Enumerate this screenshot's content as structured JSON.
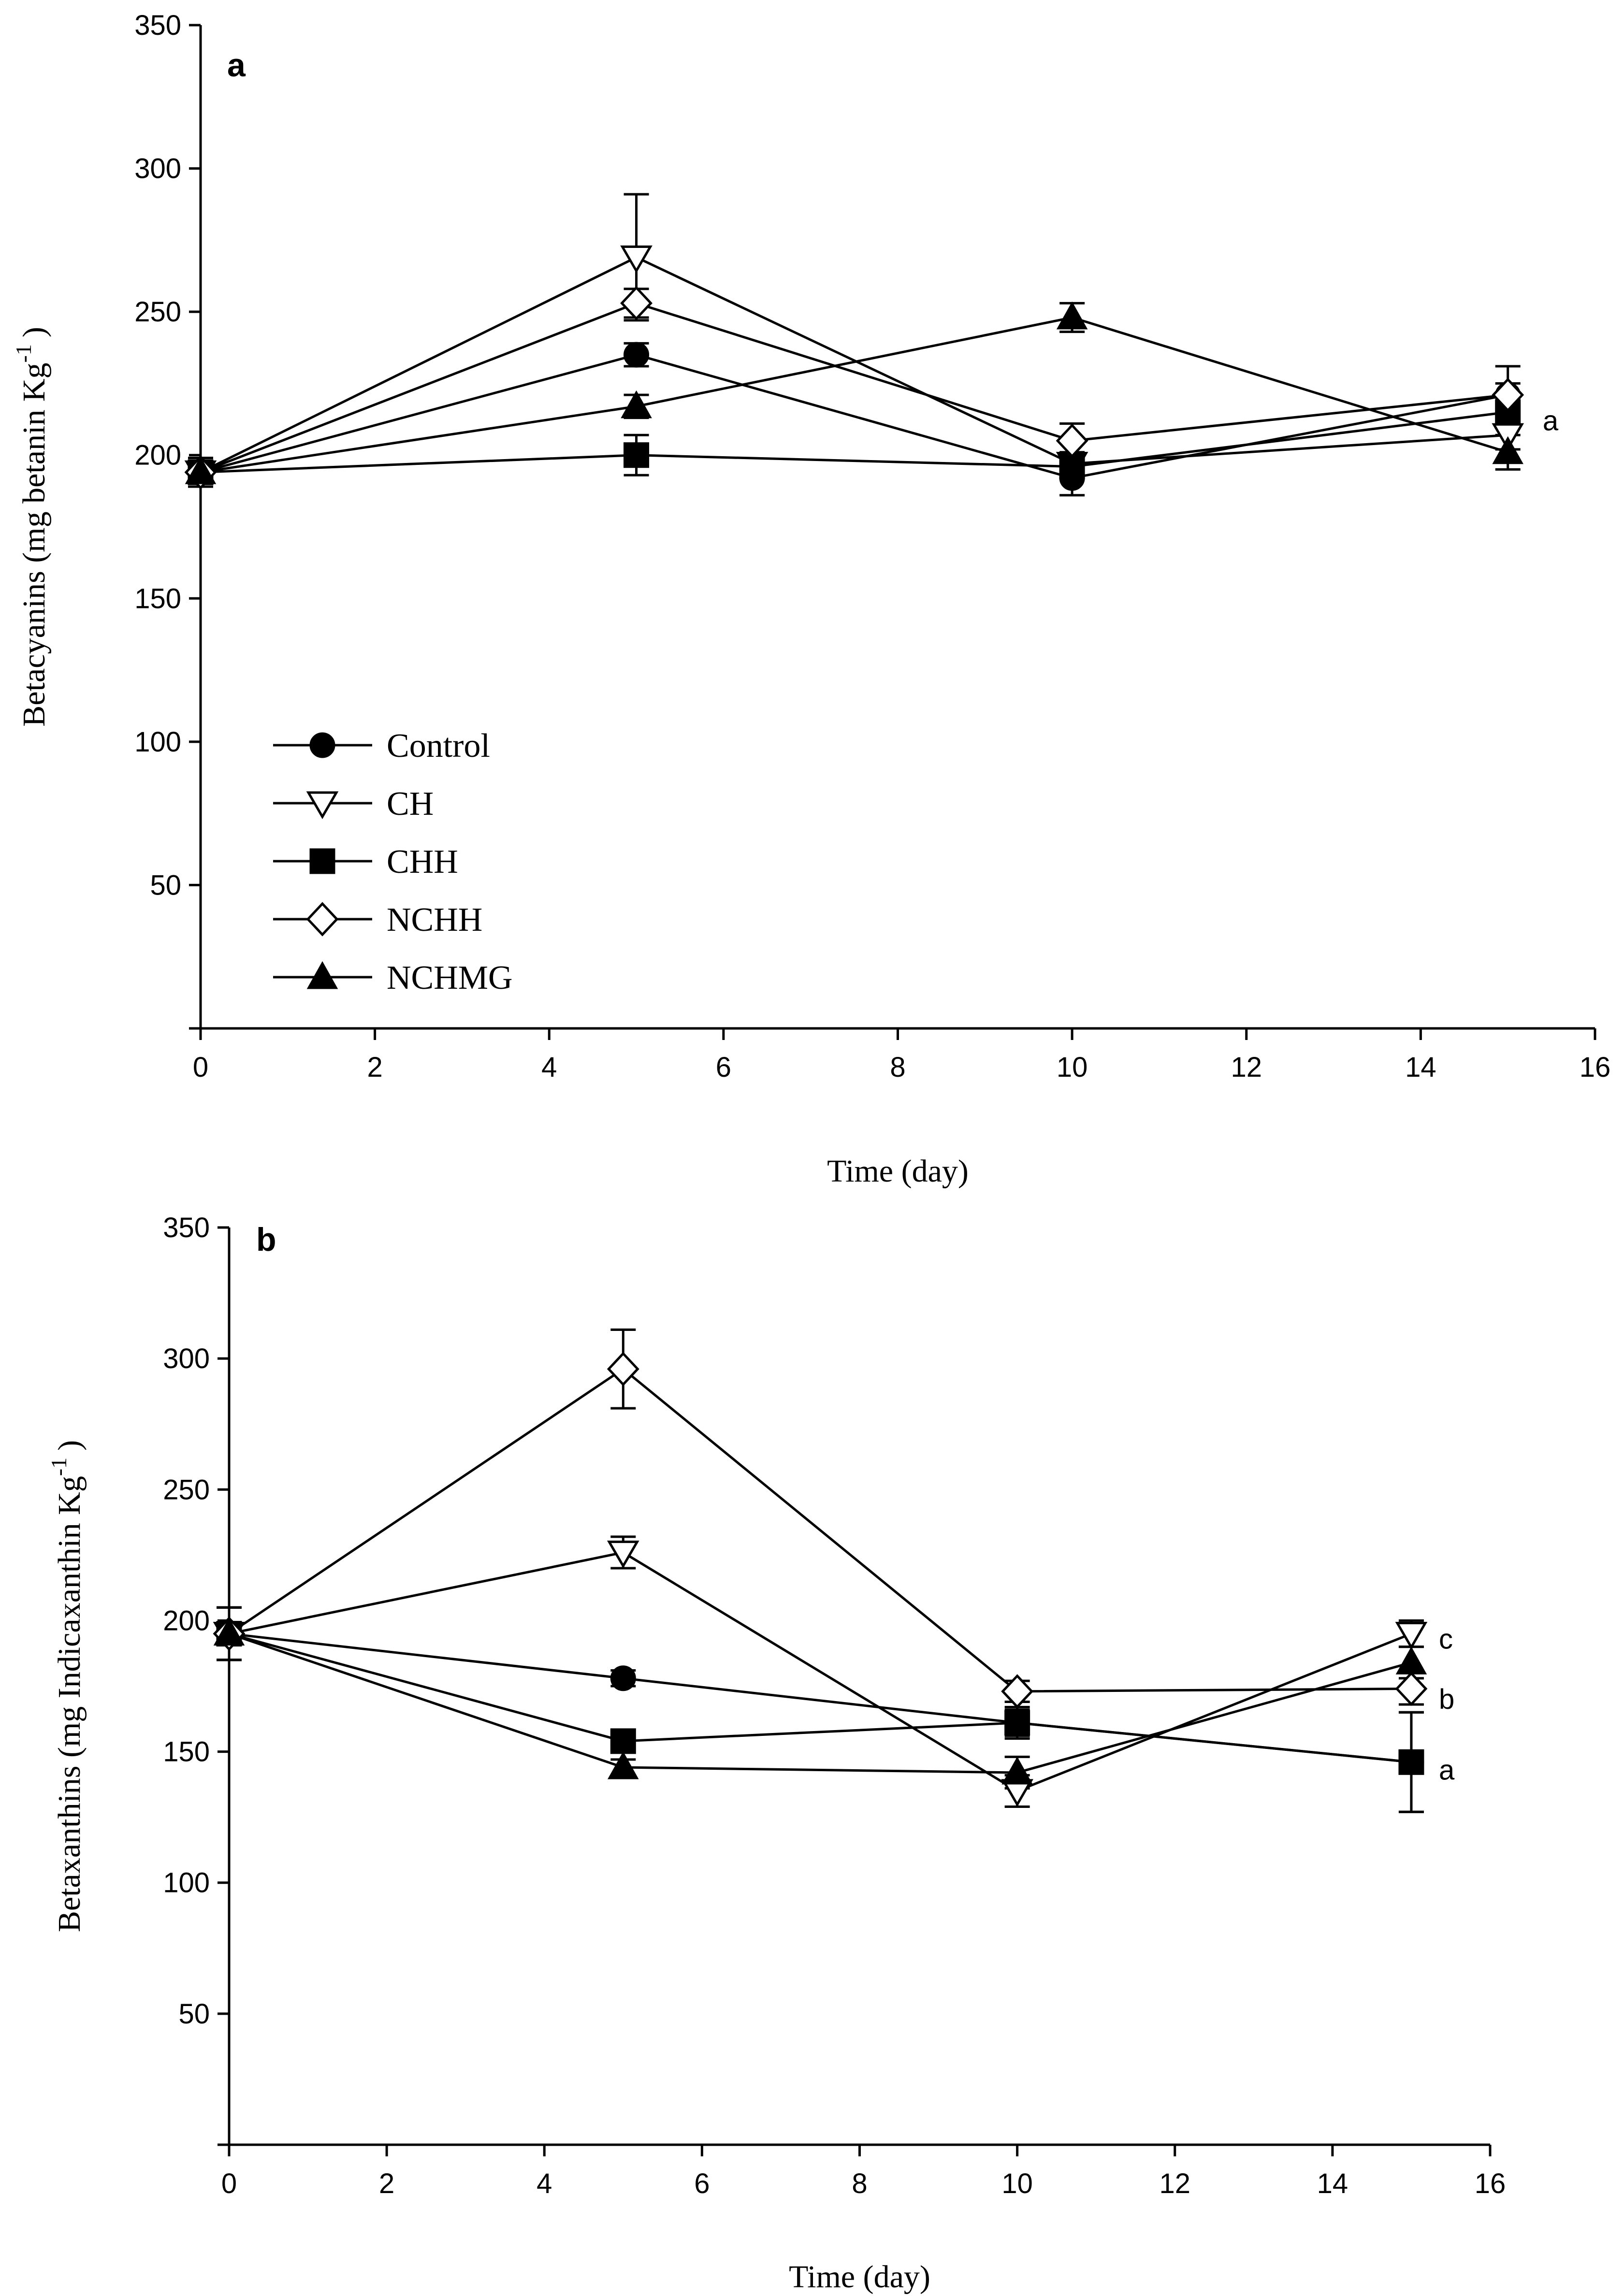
{
  "chart_data": [
    {
      "type": "line",
      "panel_label": "a",
      "xlabel": "Time (day)",
      "ylabel_main": "Betacyanins (mg betanin Kg",
      "ylabel_sup": "-1",
      "ylabel_close": ")",
      "xlim": [
        0,
        16
      ],
      "ylim": [
        0,
        350
      ],
      "xticks": [
        0,
        2,
        4,
        6,
        8,
        10,
        12,
        14,
        16
      ],
      "yticks": [
        50,
        100,
        150,
        200,
        250,
        300,
        350
      ],
      "x": [
        0,
        5,
        10,
        15
      ],
      "legend_position": "lower-left",
      "series": [
        {
          "name": "Control",
          "marker": "circle",
          "fill": "#000000",
          "values": [
            194,
            235,
            192,
            221
          ],
          "errors": [
            5,
            4,
            6,
            4
          ]
        },
        {
          "name": "CH",
          "marker": "triangle-down",
          "fill": "#ffffff",
          "values": [
            194,
            269,
            197,
            207
          ],
          "errors": [
            5,
            22,
            4,
            5
          ]
        },
        {
          "name": "CHH",
          "marker": "square",
          "fill": "#000000",
          "values": [
            194,
            200,
            196,
            215
          ],
          "errors": [
            5,
            7,
            4,
            5
          ]
        },
        {
          "name": "NCHH",
          "marker": "diamond",
          "fill": "#ffffff",
          "values": [
            194,
            253,
            205,
            221
          ],
          "errors": [
            5,
            5,
            6,
            10
          ]
        },
        {
          "name": "NCHMG",
          "marker": "triangle-up",
          "fill": "#000000",
          "values": [
            194,
            217,
            248,
            201
          ],
          "errors": [
            5,
            4,
            5,
            6
          ]
        }
      ],
      "annotations": [
        {
          "text": "a",
          "x": 15.4,
          "y": 212
        }
      ]
    },
    {
      "type": "line",
      "panel_label": "b",
      "xlabel": "Time (day)",
      "ylabel_main": "Betaxanthins (mg Indicaxanthin Kg",
      "ylabel_sup": "-1",
      "ylabel_close": ")",
      "xlim": [
        0,
        16
      ],
      "ylim": [
        0,
        350
      ],
      "xticks": [
        0,
        2,
        4,
        6,
        8,
        10,
        12,
        14,
        16
      ],
      "yticks": [
        50,
        100,
        150,
        200,
        250,
        300,
        350
      ],
      "x": [
        0,
        5,
        10,
        15
      ],
      "series": [
        {
          "name": "Control",
          "marker": "circle",
          "fill": "#000000",
          "values": [
            195,
            178,
            161,
            146
          ],
          "errors": [
            10,
            3,
            5,
            19
          ]
        },
        {
          "name": "CH",
          "marker": "triangle-down",
          "fill": "#ffffff",
          "values": [
            195,
            226,
            135,
            195
          ],
          "errors": [
            10,
            6,
            6,
            5
          ]
        },
        {
          "name": "CHH",
          "marker": "square",
          "fill": "#000000",
          "values": [
            195,
            154,
            161,
            146
          ],
          "errors": [
            10,
            4,
            6,
            19
          ]
        },
        {
          "name": "NCHH",
          "marker": "diamond",
          "fill": "#ffffff",
          "values": [
            195,
            296,
            173,
            174
          ],
          "errors": [
            10,
            15,
            4,
            6
          ]
        },
        {
          "name": "NCHMG",
          "marker": "triangle-up",
          "fill": "#000000",
          "values": [
            195,
            144,
            142,
            184
          ],
          "errors": [
            10,
            3,
            6,
            6
          ]
        }
      ],
      "annotations": [
        {
          "text": "c",
          "x": 15.35,
          "y": 193
        },
        {
          "text": "b",
          "x": 15.35,
          "y": 170
        },
        {
          "text": "a",
          "x": 15.35,
          "y": 143
        }
      ]
    }
  ]
}
